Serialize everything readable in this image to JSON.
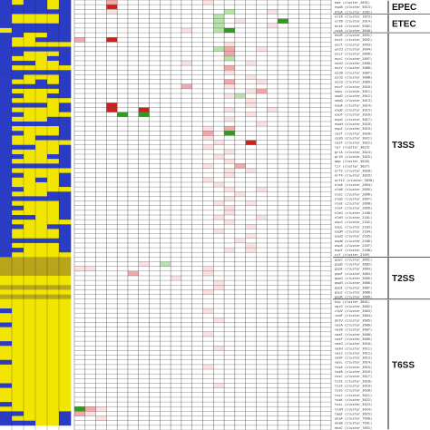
{
  "chart_data": {
    "type": "heatmap",
    "panels": [
      {
        "name": "presence-absence",
        "palette": {
          "present": "#f2e600",
          "absent": "#2a3cc4",
          "dim": "#b8a51a"
        }
      },
      {
        "name": "expression",
        "palette": {
          "high": "#d41f1f",
          "mid": "#f4a9a9",
          "low": "#fbe1e1",
          "negative": "#2f9e1f",
          "negative_light": "#b6e3a8",
          "zero": "#ffffff",
          "grid": "#555555"
        }
      }
    ],
    "groups": [
      {
        "label": "EPEC",
        "rows": [
          0,
          2
        ]
      },
      {
        "label": "ETEC",
        "rows": [
          3,
          6
        ]
      },
      {
        "label": "T3SS",
        "rows": [
          7,
          54
        ]
      },
      {
        "label": "T2SS",
        "rows": [
          55,
          63
        ]
      },
      {
        "label": "T6SS",
        "rows": [
          64,
          91
        ]
      }
    ],
    "row_labels": [
      "eae (cluster_2091)",
      "espB (cluster_5613)",
      "bfpA (cluster_3281)",
      "eltA (cluster_1873)",
      "eltB (cluster_2014)",
      "estA (cluster_5582)",
      "cssA (cluster_3640)",
      "escR (cluster_3691)",
      "escS (cluster_3692)",
      "escT (cluster_3693)",
      "escU (cluster_3694)",
      "escJ (cluster_2896)",
      "escC (cluster_2897)",
      "escD (cluster_2898)",
      "escV (cluster_3006)",
      "escN (cluster_3007)",
      "escO (cluster_3008)",
      "escQ (cluster_3009)",
      "escF (cluster_3010)",
      "sepL (cluster_3011)",
      "sepD (cluster_3012)",
      "sepQ (cluster_3013)",
      "espA (cluster_3014)",
      "espD (cluster_3015)",
      "espF (cluster_3016)",
      "espG (cluster_3017)",
      "espH (cluster_3018)",
      "espZ (cluster_3019)",
      "cesT (cluster_3020)",
      "cesD (cluster_3021)",
      "cesF (cluster_3022)",
      "ler (cluster_3023)",
      "grlA (cluster_3024)",
      "grlR (cluster_3025)",
      "map (cluster_3026)",
      "tir (cluster_3027)",
      "orf2 (cluster_3028)",
      "orf4 (cluster_3029)",
      "orf12 (cluster_3030)",
      "nleA (cluster_2094)",
      "nleB (cluster_2095)",
      "nleC (cluster_2096)",
      "nleD (cluster_2097)",
      "nleE (cluster_2098)",
      "nleF (cluster_2099)",
      "nleG (cluster_2100)",
      "nleH (cluster_2101)",
      "espJ (cluster_2102)",
      "espL (cluster_2103)",
      "espM (cluster_2104)",
      "espO (cluster_2105)",
      "espW (cluster_2106)",
      "espX (cluster_2107)",
      "espY (cluster_2108)",
      "cif (cluster_2109)",
      "gspC (cluster_3691)",
      "gspD (cluster_3682)",
      "gspE (cluster_3683)",
      "gspF (cluster_3684)",
      "gspG (cluster_3685)",
      "gspH (cluster_3686)",
      "gspI (cluster_3687)",
      "gspJ (cluster_3688)",
      "gspK (cluster_3689)",
      "hcp (cluster_3601)",
      "vgrG (cluster_3602)",
      "clpV (cluster_3603)",
      "icmF (cluster_3604)",
      "dotU (cluster_3605)",
      "vasA (cluster_3606)",
      "vasB (cluster_3607)",
      "vasE (cluster_3608)",
      "vasF (cluster_3609)",
      "vasG (cluster_3610)",
      "vasH (cluster_3611)",
      "vasJ (cluster_3612)",
      "vasK (cluster_3613)",
      "vasL (cluster_3614)",
      "tssA (cluster_3615)",
      "tssB (cluster_3616)",
      "tssC (cluster_3617)",
      "tssE (cluster_3618)",
      "tssF (cluster_3619)",
      "tssG (cluster_3620)",
      "tssJ (cluster_3621)",
      "tssK (cluster_3622)",
      "tssL (cluster_3623)",
      "tssM (cluster_3624)",
      "tagF (cluster_3625)",
      "ehaA (cluster_7690)",
      "ehaB (cluster_7691)",
      "ehaC (cluster_7692)"
    ],
    "presence_matrix": [
      [
        0,
        1,
        0,
        0,
        1,
        0
      ],
      [
        0,
        0,
        0,
        0,
        1,
        0
      ],
      [
        0,
        0,
        0,
        0,
        0,
        0
      ],
      [
        0,
        1,
        1,
        1,
        1,
        0
      ],
      [
        0,
        1,
        1,
        1,
        1,
        0
      ],
      [
        0,
        0,
        0,
        0,
        0,
        0
      ],
      [
        1,
        0,
        0,
        0,
        0,
        0
      ],
      [
        0,
        0,
        1,
        1,
        0,
        0
      ],
      [
        0,
        1,
        1,
        0,
        0,
        0
      ],
      [
        0,
        1,
        1,
        1,
        1,
        1
      ],
      [
        0,
        0,
        0,
        0,
        0,
        0
      ],
      [
        0,
        0,
        1,
        1,
        1,
        0
      ],
      [
        0,
        1,
        1,
        1,
        0,
        0
      ],
      [
        0,
        0,
        0,
        1,
        1,
        0
      ],
      [
        0,
        1,
        1,
        1,
        1,
        1
      ],
      [
        0,
        0,
        0,
        0,
        0,
        0
      ],
      [
        0,
        0,
        1,
        1,
        1,
        0
      ],
      [
        0,
        1,
        1,
        0,
        1,
        0
      ],
      [
        0,
        0,
        0,
        0,
        0,
        0
      ],
      [
        0,
        1,
        1,
        1,
        1,
        0
      ],
      [
        0,
        0,
        1,
        1,
        0,
        0
      ],
      [
        0,
        1,
        1,
        1,
        1,
        1
      ],
      [
        0,
        0,
        0,
        0,
        1,
        0
      ],
      [
        0,
        1,
        1,
        1,
        1,
        0
      ],
      [
        0,
        0,
        1,
        1,
        1,
        1
      ],
      [
        0,
        1,
        1,
        1,
        0,
        0
      ],
      [
        0,
        0,
        0,
        0,
        0,
        0
      ],
      [
        0,
        1,
        1,
        1,
        1,
        0
      ],
      [
        0,
        0,
        1,
        1,
        1,
        0
      ],
      [
        0,
        1,
        1,
        0,
        0,
        0
      ],
      [
        0,
        1,
        1,
        1,
        1,
        1
      ],
      [
        0,
        0,
        0,
        1,
        1,
        0
      ],
      [
        0,
        1,
        1,
        1,
        1,
        0
      ],
      [
        0,
        0,
        1,
        1,
        0,
        0
      ],
      [
        0,
        1,
        1,
        1,
        1,
        0
      ],
      [
        0,
        0,
        0,
        0,
        0,
        0
      ],
      [
        0,
        1,
        1,
        1,
        1,
        1
      ],
      [
        0,
        0,
        1,
        1,
        1,
        0
      ],
      [
        0,
        1,
        1,
        0,
        1,
        0
      ],
      [
        0,
        1,
        1,
        1,
        1,
        0
      ],
      [
        0,
        0,
        1,
        1,
        1,
        1
      ],
      [
        0,
        1,
        1,
        1,
        0,
        0
      ],
      [
        0,
        0,
        0,
        0,
        0,
        0
      ],
      [
        0,
        1,
        1,
        1,
        1,
        0
      ],
      [
        0,
        0,
        1,
        1,
        1,
        0
      ],
      [
        0,
        1,
        1,
        1,
        1,
        0
      ],
      [
        0,
        0,
        0,
        1,
        1,
        0
      ],
      [
        0,
        1,
        1,
        1,
        1,
        1
      ],
      [
        0,
        0,
        1,
        1,
        0,
        0
      ],
      [
        0,
        1,
        1,
        1,
        1,
        0
      ],
      [
        0,
        1,
        1,
        1,
        1,
        0
      ],
      [
        0,
        0,
        0,
        0,
        0,
        0
      ],
      [
        0,
        1,
        1,
        1,
        1,
        0
      ],
      [
        0,
        0,
        1,
        1,
        1,
        0
      ],
      [
        0,
        1,
        1,
        1,
        1,
        1
      ],
      [
        2,
        2,
        2,
        2,
        2,
        2
      ],
      [
        2,
        2,
        2,
        2,
        2,
        2
      ],
      [
        2,
        2,
        2,
        2,
        2,
        2
      ],
      [
        2,
        2,
        2,
        2,
        2,
        2
      ],
      [
        1,
        1,
        1,
        1,
        1,
        1
      ],
      [
        1,
        1,
        1,
        1,
        1,
        1
      ],
      [
        2,
        2,
        2,
        2,
        2,
        2
      ],
      [
        1,
        1,
        1,
        1,
        1,
        1
      ],
      [
        2,
        2,
        2,
        2,
        2,
        2
      ],
      [
        1,
        1,
        1,
        1,
        1,
        1
      ],
      [
        1,
        1,
        1,
        1,
        1,
        1
      ],
      [
        0,
        1,
        1,
        1,
        1,
        1
      ],
      [
        1,
        1,
        1,
        1,
        1,
        1
      ],
      [
        1,
        1,
        1,
        1,
        1,
        1
      ],
      [
        0,
        1,
        1,
        1,
        1,
        1
      ],
      [
        1,
        1,
        1,
        1,
        1,
        1
      ],
      [
        1,
        1,
        1,
        1,
        1,
        1
      ],
      [
        1,
        1,
        1,
        1,
        1,
        1
      ],
      [
        0,
        1,
        1,
        1,
        1,
        1
      ],
      [
        1,
        1,
        1,
        1,
        1,
        1
      ],
      [
        1,
        1,
        1,
        1,
        1,
        1
      ],
      [
        1,
        1,
        1,
        1,
        1,
        1
      ],
      [
        0,
        1,
        1,
        1,
        1,
        1
      ],
      [
        1,
        1,
        1,
        1,
        1,
        1
      ],
      [
        1,
        1,
        1,
        1,
        1,
        1
      ],
      [
        1,
        1,
        1,
        1,
        1,
        1
      ],
      [
        1,
        1,
        1,
        1,
        1,
        1
      ],
      [
        0,
        1,
        1,
        1,
        1,
        1
      ],
      [
        1,
        1,
        1,
        1,
        1,
        1
      ],
      [
        1,
        1,
        1,
        1,
        1,
        1
      ],
      [
        1,
        1,
        1,
        1,
        1,
        1
      ],
      [
        0,
        1,
        1,
        1,
        1,
        1
      ],
      [
        1,
        1,
        1,
        1,
        1,
        1
      ],
      [
        0,
        0,
        1,
        1,
        1,
        0
      ],
      [
        0,
        1,
        1,
        1,
        1,
        0
      ],
      [
        0,
        0,
        0,
        1,
        1,
        0
      ]
    ],
    "expression_columns": 24,
    "expression_cells": [
      [
        0,
        3,
        "mid"
      ],
      [
        0,
        12,
        "low"
      ],
      [
        1,
        3,
        "high"
      ],
      [
        2,
        3,
        "low"
      ],
      [
        2,
        14,
        "negative_light"
      ],
      [
        2,
        18,
        "low"
      ],
      [
        3,
        13,
        "negative_light"
      ],
      [
        4,
        13,
        "negative_light"
      ],
      [
        4,
        15,
        "low"
      ],
      [
        4,
        19,
        "negative"
      ],
      [
        5,
        13,
        "negative_light"
      ],
      [
        5,
        18,
        "low"
      ],
      [
        6,
        10,
        "low"
      ],
      [
        6,
        13,
        "negative_light"
      ],
      [
        6,
        14,
        "negative"
      ],
      [
        8,
        0,
        "mid"
      ],
      [
        8,
        3,
        "high"
      ],
      [
        9,
        14,
        "low"
      ],
      [
        10,
        13,
        "negative_light"
      ],
      [
        10,
        14,
        "mid"
      ],
      [
        10,
        17,
        "low"
      ],
      [
        11,
        14,
        "mid"
      ],
      [
        12,
        14,
        "negative_light"
      ],
      [
        13,
        10,
        "low"
      ],
      [
        13,
        16,
        "low"
      ],
      [
        14,
        14,
        "mid"
      ],
      [
        15,
        14,
        "low"
      ],
      [
        16,
        16,
        "low"
      ],
      [
        17,
        14,
        "mid"
      ],
      [
        17,
        17,
        "low"
      ],
      [
        18,
        10,
        "mid"
      ],
      [
        18,
        14,
        "low"
      ],
      [
        19,
        16,
        "low"
      ],
      [
        19,
        17,
        "mid"
      ],
      [
        20,
        14,
        "low"
      ],
      [
        20,
        15,
        "negative_light"
      ],
      [
        21,
        16,
        "low"
      ],
      [
        22,
        3,
        "high"
      ],
      [
        22,
        16,
        "low"
      ],
      [
        23,
        3,
        "high"
      ],
      [
        23,
        6,
        "high"
      ],
      [
        23,
        14,
        "low"
      ],
      [
        23,
        18,
        "low"
      ],
      [
        24,
        4,
        "negative"
      ],
      [
        24,
        6,
        "negative"
      ],
      [
        24,
        16,
        "low"
      ],
      [
        25,
        14,
        "low"
      ],
      [
        26,
        17,
        "low"
      ],
      [
        27,
        12,
        "low"
      ],
      [
        27,
        14,
        "mid"
      ],
      [
        28,
        12,
        "mid"
      ],
      [
        28,
        14,
        "negative"
      ],
      [
        29,
        12,
        "low"
      ],
      [
        30,
        13,
        "low"
      ],
      [
        30,
        16,
        "high"
      ],
      [
        31,
        12,
        "low"
      ],
      [
        32,
        14,
        "low"
      ],
      [
        33,
        13,
        "low"
      ],
      [
        34,
        14,
        "low"
      ],
      [
        35,
        12,
        "low"
      ],
      [
        35,
        15,
        "mid"
      ],
      [
        36,
        14,
        "low"
      ],
      [
        36,
        16,
        "low"
      ],
      [
        37,
        14,
        "low"
      ],
      [
        38,
        12,
        "low"
      ],
      [
        39,
        13,
        "low"
      ],
      [
        40,
        14,
        "low"
      ],
      [
        40,
        17,
        "low"
      ],
      [
        41,
        15,
        "low"
      ],
      [
        42,
        14,
        "low"
      ],
      [
        43,
        13,
        "low"
      ],
      [
        43,
        16,
        "low"
      ],
      [
        44,
        14,
        "low"
      ],
      [
        45,
        14,
        "low"
      ],
      [
        46,
        13,
        "low"
      ],
      [
        46,
        17,
        "low"
      ],
      [
        47,
        14,
        "low"
      ],
      [
        48,
        16,
        "low"
      ],
      [
        49,
        13,
        "low"
      ],
      [
        50,
        16,
        "low"
      ],
      [
        51,
        15,
        "low"
      ],
      [
        52,
        16,
        "low"
      ],
      [
        53,
        14,
        "low"
      ],
      [
        53,
        16,
        "low"
      ],
      [
        56,
        6,
        "low"
      ],
      [
        56,
        8,
        "negative_light"
      ],
      [
        57,
        0,
        "low"
      ],
      [
        57,
        1,
        "low"
      ],
      [
        57,
        12,
        "low"
      ],
      [
        58,
        5,
        "mid"
      ],
      [
        58,
        12,
        "low"
      ],
      [
        59,
        9,
        "low"
      ],
      [
        60,
        13,
        "low"
      ],
      [
        61,
        13,
        "low"
      ],
      [
        62,
        12,
        "low"
      ],
      [
        66,
        12,
        "low"
      ],
      [
        68,
        13,
        "low"
      ],
      [
        71,
        12,
        "low"
      ],
      [
        74,
        13,
        "low"
      ],
      [
        78,
        12,
        "low"
      ],
      [
        82,
        13,
        "low"
      ],
      [
        87,
        0,
        "negative"
      ],
      [
        87,
        1,
        "mid"
      ],
      [
        87,
        2,
        "low"
      ],
      [
        88,
        0,
        "mid"
      ],
      [
        88,
        1,
        "low"
      ],
      [
        89,
        2,
        "low"
      ]
    ]
  }
}
